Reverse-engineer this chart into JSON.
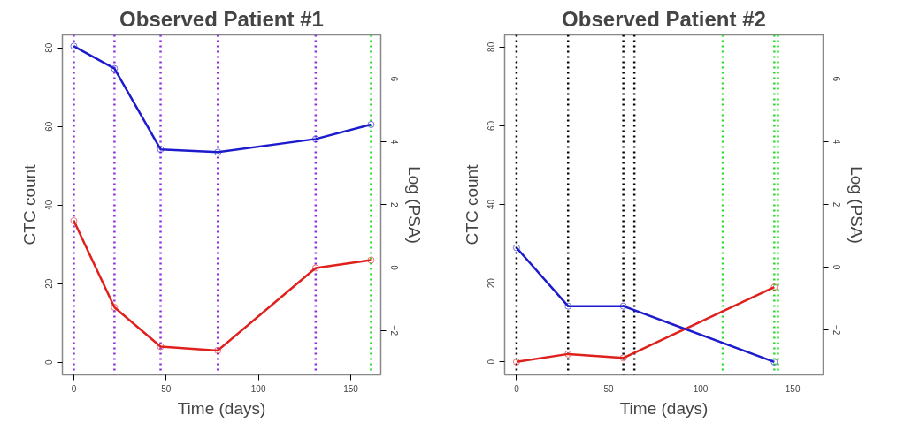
{
  "chart_data": [
    {
      "type": "line",
      "title": "Observed Patient #1",
      "xlabel": "Time (days)",
      "ylabel": "CTC count",
      "y2label": "Log (PSA)",
      "marker": "circle",
      "grid": false,
      "line_style": "solid",
      "xlim": [
        -6.2,
        166.3
      ],
      "xticks": [
        0,
        50,
        100,
        150
      ],
      "ylim": [
        -3.2,
        83.3
      ],
      "yticks": [
        0,
        20,
        40,
        60,
        80
      ],
      "y2lim": [
        -3.41,
        7.4
      ],
      "y2ticks": [
        -2,
        0,
        2,
        4,
        6
      ],
      "series": [
        {
          "color": "#e0201c",
          "x": [
            0,
            22,
            47,
            78,
            131,
            161
          ],
          "values": [
            36,
            14,
            4,
            3,
            24,
            26
          ]
        },
        {
          "color": "#1c1ccc",
          "axis": "y2",
          "x": [
            0,
            22,
            47,
            78,
            131,
            161
          ],
          "values": [
            7.04,
            6.33,
            3.76,
            3.67,
            4.09,
            4.55
          ]
        }
      ],
      "ref_lines": [
        {
          "axis": "x",
          "value": 0,
          "color": "#8a2be2",
          "line_style": "dotted"
        },
        {
          "axis": "x",
          "value": 22,
          "color": "#8a2be2",
          "line_style": "dotted"
        },
        {
          "axis": "x",
          "value": 47,
          "color": "#8a2be2",
          "line_style": "dotted"
        },
        {
          "axis": "x",
          "value": 78,
          "color": "#8a2be2",
          "line_style": "dotted"
        },
        {
          "axis": "x",
          "value": 131,
          "color": "#8a2be2",
          "line_style": "dotted"
        },
        {
          "axis": "x",
          "value": 161,
          "color": "#22dd22",
          "line_style": "dotted"
        }
      ]
    },
    {
      "type": "line",
      "title": "Observed Patient #2",
      "xlabel": "Time (days)",
      "ylabel": "CTC count",
      "y2label": "Log (PSA)",
      "marker": "circle",
      "grid": false,
      "line_style": "solid",
      "xlim": [
        -6.45,
        166.5
      ],
      "xticks": [
        0,
        50,
        100,
        150
      ],
      "ylim": [
        -3.3,
        83.1
      ],
      "yticks": [
        0,
        20,
        40,
        60,
        80
      ],
      "y2lim": [
        -3.43,
        7.4
      ],
      "y2ticks": [
        -2,
        0,
        2,
        4,
        6
      ],
      "series": [
        {
          "color": "#e0201c",
          "x": [
            0,
            28,
            58,
            140
          ],
          "values": [
            0,
            2,
            1,
            19
          ]
        },
        {
          "color": "#1c1ccc",
          "axis": "y2",
          "x": [
            0,
            28,
            58,
            140
          ],
          "values": [
            0.62,
            -1.24,
            -1.24,
            -3.02
          ]
        }
      ],
      "ref_lines": [
        {
          "axis": "x",
          "value": 0,
          "color": "#000000",
          "line_style": "dotted"
        },
        {
          "axis": "x",
          "value": 28,
          "color": "#000000",
          "line_style": "dotted"
        },
        {
          "axis": "x",
          "value": 58,
          "color": "#000000",
          "line_style": "dotted"
        },
        {
          "axis": "x",
          "value": 64,
          "color": "#000000",
          "line_style": "dotted"
        },
        {
          "axis": "x",
          "value": 112,
          "color": "#22dd22",
          "line_style": "dotted"
        },
        {
          "axis": "x",
          "value": 140,
          "color": "#22dd22",
          "line_style": "dotted"
        },
        {
          "axis": "x",
          "value": 142,
          "color": "#22dd22",
          "line_style": "dotted"
        }
      ]
    }
  ]
}
